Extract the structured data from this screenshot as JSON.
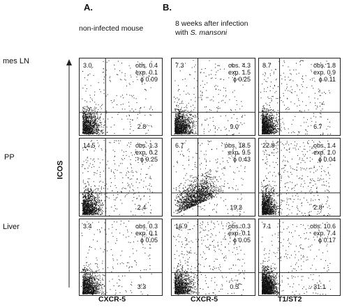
{
  "labels": {
    "panel_a": "A.",
    "panel_b": "B.",
    "sub_a": "non-infected mouse",
    "sub_b_line1": "8 weeks after infection",
    "sub_b_line2_prefix": "with ",
    "sub_b_line2_italic": "S. mansoni",
    "row1": "mes LN",
    "row2": "PP",
    "row3": "Liver",
    "y_axis": "ICOS",
    "x_axis_1": "CXCR-5",
    "x_axis_2": "CXCR-5",
    "x_axis_3": "T1/ST2"
  },
  "chart_data": {
    "type": "scatter",
    "panels": [
      {
        "row": "mes LN",
        "col": "non-infected mouse",
        "upper_left": "3.0",
        "lower_right": "2.8",
        "obs": "obs. 0.4",
        "exp": "exp. 0.1",
        "phi": "ϕ 0.09"
      },
      {
        "row": "mes LN",
        "col": "8 weeks after infection (CXCR-5)",
        "upper_left": "7.3",
        "lower_right": "9.0",
        "obs": "obs. 4.3",
        "exp": "exp. 1.5",
        "phi": "ϕ 0.25"
      },
      {
        "row": "mes LN",
        "col": "8 weeks after infection (T1/ST2)",
        "upper_left": "8.7",
        "lower_right": "6.7",
        "obs": "obs. 1.8",
        "exp": "exp. 0.9",
        "phi": "ϕ 0.11"
      },
      {
        "row": "PP",
        "col": "non-infected mouse",
        "upper_left": "14.5",
        "lower_right": "2.4",
        "obs": "obs. 1.3",
        "exp": "exp. 0.2",
        "phi": "ϕ 0.25"
      },
      {
        "row": "PP",
        "col": "8 weeks after infection (CXCR-5)",
        "upper_left": "6.7",
        "lower_right": "19.2",
        "obs": "obs. 18.5",
        "exp": "exp. 9.5",
        "phi": "ϕ 0.43"
      },
      {
        "row": "PP",
        "col": "8 weeks after infection (T1/ST2)",
        "upper_left": "22.8",
        "lower_right": "2.8",
        "obs": "obs. 1.4",
        "exp": "exp. 1.0",
        "phi": "ϕ 0.04"
      },
      {
        "row": "Liver",
        "col": "non-infected mouse",
        "upper_left": "3.4",
        "lower_right": "3.3",
        "obs": "obs. 0.3",
        "exp": "exp. 0.1",
        "phi": "ϕ 0.05"
      },
      {
        "row": "Liver",
        "col": "8 weeks after infection (CXCR-5)",
        "upper_left": "16.9",
        "lower_right": "0.5",
        "obs": "obs. 0.3",
        "exp": "exp. 0.1",
        "phi": "ϕ 0.05"
      },
      {
        "row": "Liver",
        "col": "8 weeks after infection (T1/ST2)",
        "upper_left": "7.1",
        "lower_right": "31.1",
        "obs": "obs. 10.6",
        "exp": "exp. 7.4",
        "phi": "ϕ 0.17"
      }
    ]
  }
}
